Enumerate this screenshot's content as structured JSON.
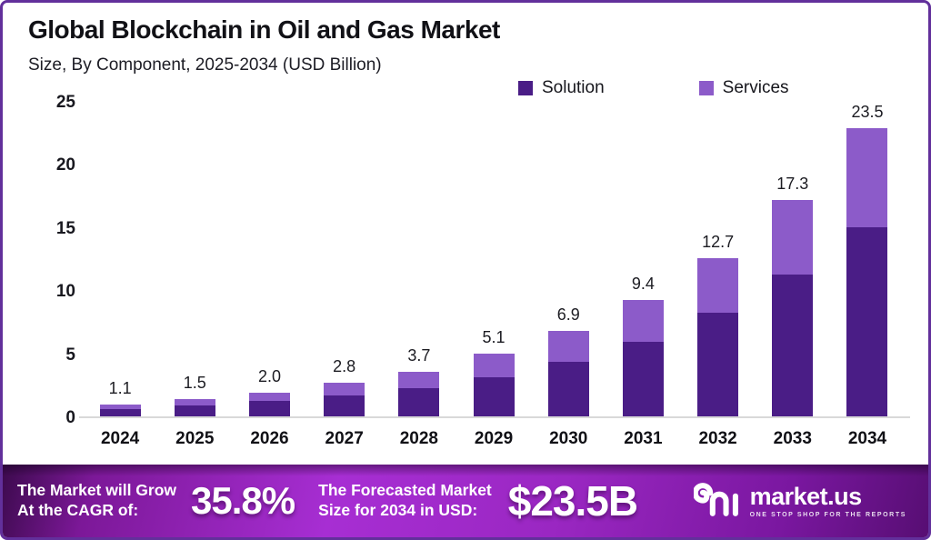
{
  "header": {
    "title": "Global Blockchain in Oil and Gas Market",
    "subtitle": "Size, By Component, 2025-2034 (USD Billion)"
  },
  "legend": [
    {
      "label": "Solution",
      "color": "#4a1d86"
    },
    {
      "label": "Services",
      "color": "#8c5bc9"
    }
  ],
  "chart_data": {
    "type": "bar",
    "stacked": true,
    "title": "Global Blockchain in Oil and Gas Market",
    "subtitle": "Size, By Component, 2025-2034 (USD Billion)",
    "categories": [
      "2024",
      "2025",
      "2026",
      "2027",
      "2028",
      "2029",
      "2030",
      "2031",
      "2032",
      "2033",
      "2034"
    ],
    "series": [
      {
        "name": "Solution",
        "color": "#4a1d86",
        "values": [
          0.7,
          1.0,
          1.35,
          1.8,
          2.35,
          3.25,
          4.5,
          6.05,
          8.35,
          11.35,
          15.5
        ]
      },
      {
        "name": "Services",
        "color": "#8c5bc9",
        "values": [
          0.4,
          0.5,
          0.65,
          1.0,
          1.35,
          1.85,
          2.4,
          3.35,
          4.35,
          5.95,
          8.0
        ]
      }
    ],
    "total_labels": [
      "1.1",
      "1.5",
      "2.0",
      "2.8",
      "3.7",
      "5.1",
      "6.9",
      "9.4",
      "12.7",
      "17.3",
      "23.5"
    ],
    "xlabel": "",
    "ylabel": "",
    "ylim": [
      0,
      25
    ],
    "yticks": [
      0,
      5,
      10,
      15,
      20,
      25
    ],
    "grid": false,
    "legend_position": "top-right"
  },
  "banner": {
    "cagr_label_line1": "The Market will Grow",
    "cagr_label_line2": "At the CAGR of:",
    "cagr_value": "35.8%",
    "forecast_label_line1": "The Forecasted Market",
    "forecast_label_line2": "Size for 2034 in USD:",
    "forecast_value": "$23.5B",
    "logo": {
      "text": "market.us",
      "tagline": "ONE STOP SHOP FOR THE REPORTS"
    },
    "accent_colors": {
      "banner_start": "#3c0a4d",
      "banner_mid": "#a72ed3",
      "banner_end": "#570e73",
      "frame_border": "#62309b"
    }
  }
}
